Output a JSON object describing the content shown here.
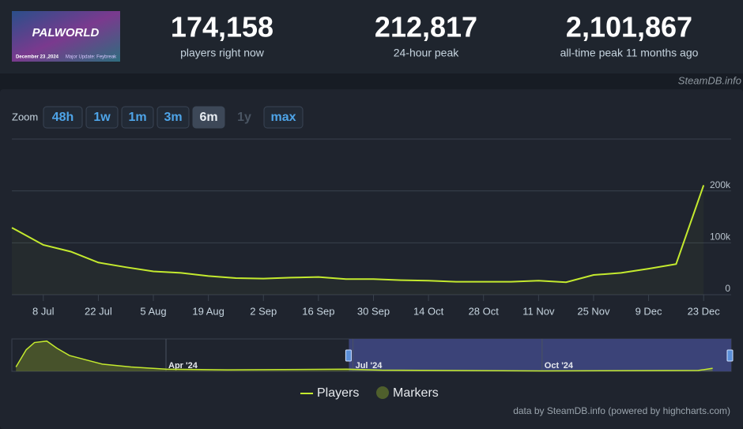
{
  "header": {
    "banner": {
      "title": "PALWORLD",
      "date": "December 23 ,2024",
      "update": "Major Update: Feybreak"
    },
    "stats": [
      {
        "value": "174,158",
        "label": "players right now"
      },
      {
        "value": "212,817",
        "label": "24-hour peak"
      },
      {
        "value": "2,101,867",
        "label": "all-time peak 11 months ago"
      }
    ],
    "source": "SteamDB.info"
  },
  "zoom": {
    "label": "Zoom",
    "buttons": [
      "48h",
      "1w",
      "1m",
      "3m",
      "6m",
      "1y",
      "max"
    ],
    "active": "6m",
    "disabled": "1y"
  },
  "chart_data": {
    "type": "line",
    "x": [
      "2024-06-30",
      "2024-07-01",
      "2024-07-08",
      "2024-07-15",
      "2024-07-22",
      "2024-07-29",
      "2024-08-05",
      "2024-08-12",
      "2024-08-19",
      "2024-08-26",
      "2024-09-02",
      "2024-09-09",
      "2024-09-16",
      "2024-09-23",
      "2024-09-30",
      "2024-10-07",
      "2024-10-14",
      "2024-10-21",
      "2024-10-28",
      "2024-11-04",
      "2024-11-11",
      "2024-11-18",
      "2024-11-25",
      "2024-12-02",
      "2024-12-09",
      "2024-12-16",
      "2024-12-23"
    ],
    "series": [
      {
        "name": "Players",
        "color": "#c4ea2e",
        "values": [
          129000,
          125000,
          96000,
          83000,
          62000,
          53000,
          45000,
          42000,
          36000,
          32000,
          31000,
          33000,
          34000,
          30000,
          30000,
          28000,
          27000,
          25000,
          25000,
          25000,
          27000,
          24000,
          38000,
          42000,
          50000,
          59000,
          211000
        ]
      }
    ],
    "markers": {
      "name": "Markers",
      "color": "#4f5f2c"
    },
    "xlim": [
      "2024-06-30",
      "2024-12-30"
    ],
    "xticks": [
      {
        "value": "2024-07-08",
        "label": "8 Jul"
      },
      {
        "value": "2024-07-22",
        "label": "22 Jul"
      },
      {
        "value": "2024-08-05",
        "label": "5 Aug"
      },
      {
        "value": "2024-08-19",
        "label": "19 Aug"
      },
      {
        "value": "2024-09-02",
        "label": "2 Sep"
      },
      {
        "value": "2024-09-16",
        "label": "16 Sep"
      },
      {
        "value": "2024-09-30",
        "label": "30 Sep"
      },
      {
        "value": "2024-10-14",
        "label": "14 Oct"
      },
      {
        "value": "2024-10-28",
        "label": "28 Oct"
      },
      {
        "value": "2024-11-11",
        "label": "11 Nov"
      },
      {
        "value": "2024-11-25",
        "label": "25 Nov"
      },
      {
        "value": "2024-12-09",
        "label": "9 Dec"
      },
      {
        "value": "2024-12-23",
        "label": "23 Dec"
      }
    ],
    "ylim": [
      0,
      300000
    ],
    "yticks": [
      0,
      {
        "value": 100000,
        "label": "100k"
      },
      {
        "value": 200000,
        "label": "200k"
      }
    ],
    "grid": true,
    "navigator": {
      "x": [
        "2024-01-19",
        "2024-01-24",
        "2024-01-28",
        "2024-02-03",
        "2024-02-08",
        "2024-02-14",
        "2024-02-22",
        "2024-03-01",
        "2024-03-15",
        "2024-04-01",
        "2024-05-01",
        "2024-06-28",
        "2024-07-15",
        "2024-10-01",
        "2024-12-16",
        "2024-12-23"
      ],
      "values": [
        300000,
        1500000,
        2000000,
        2101867,
        1600000,
        1100000,
        800000,
        500000,
        300000,
        150000,
        100000,
        150000,
        83000,
        30000,
        59000,
        211000
      ],
      "xlim": [
        "2024-01-17",
        "2025-01-01"
      ],
      "ylim": [
        0,
        2250000
      ],
      "xticks": [
        {
          "value": "2024-04-01",
          "label": "Apr '24"
        },
        {
          "value": "2024-07-01",
          "label": "Jul '24"
        },
        {
          "value": "2024-10-01",
          "label": "Oct '24"
        }
      ],
      "selection": [
        "2024-06-29",
        "2025-01-01"
      ]
    },
    "credit": "data by SteamDB.info (powered by highcharts.com)"
  }
}
